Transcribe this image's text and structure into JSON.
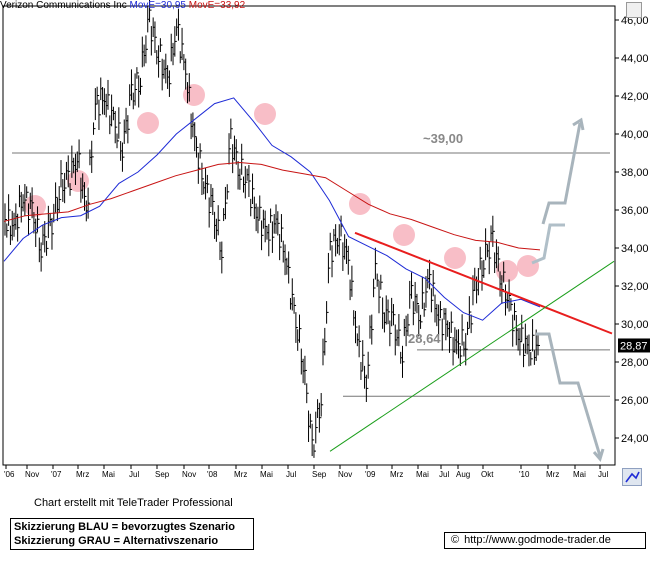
{
  "title": {
    "symbol": "Verizon Communications Inc",
    "ma_short_label": "MovE=30,95",
    "ma_long_label": "MovE=33,92"
  },
  "credit": "Chart erstellt mit TeleTrader Professional",
  "legend": {
    "blue_line": "Skizzierung BLAU = bevorzugtes Szenario",
    "gray_line": "Skizzierung GRAU = Alternativszenario"
  },
  "url": {
    "copyright_symbol": "©",
    "text": "http://www.godmode-trader.de"
  },
  "chart_data": {
    "type": "ohlc",
    "y_range": [
      23.0,
      46.5
    ],
    "y_ticks": [
      "46,00",
      "44,00",
      "42,00",
      "40,00",
      "38,00",
      "36,00",
      "34,00",
      "32,00",
      "30,00",
      "28,00",
      "26,00",
      "24,00"
    ],
    "last_price_label": "28,87",
    "last_price": 28.87,
    "x_tick_labels": [
      "'06",
      "Nov",
      "'07",
      "Mrz",
      "Mai",
      "Jul",
      "Sep",
      "Nov",
      "'08",
      "Mrz",
      "Mai",
      "Jul",
      "Sep",
      "Nov",
      "'09",
      "Mrz",
      "Mai",
      "Jul",
      "Aug",
      "Okt",
      "'10",
      "Mrz",
      "Mai",
      "Jul"
    ],
    "annotations": {
      "resistance_label": "~39,00",
      "resistance_value": 39.0,
      "support_label": "28,64",
      "support_value": 28.64,
      "lower_support_value": 26.2
    },
    "series": [
      {
        "name": "MovE=30,95",
        "color": "#1e2bd6",
        "values": [
          33.3,
          34.5,
          35.2,
          35.6,
          35.7,
          36.2,
          37.4,
          38.0,
          38.9,
          40.0,
          40.8,
          41.6,
          41.9,
          40.7,
          39.4,
          38.8,
          38.0,
          36.5,
          34.6,
          34.1,
          33.6,
          32.9,
          32.4,
          31.4,
          30.6,
          30.2,
          31.1,
          31.3,
          30.9
        ]
      },
      {
        "name": "MovE=33,92",
        "color": "#c81414",
        "values": [
          35.4,
          35.7,
          35.8,
          35.9,
          36.3,
          36.6,
          37.0,
          37.4,
          37.8,
          38.1,
          38.4,
          38.5,
          38.4,
          38.1,
          37.9,
          37.7,
          37.0,
          36.3,
          35.8,
          35.5,
          35.1,
          34.7,
          34.4,
          34.3,
          34.0,
          33.9
        ]
      }
    ],
    "price_points": [
      35.5,
      35.0,
      36.8,
      35.8,
      34.2,
      34.8,
      37.2,
      37.5,
      38.9,
      35.8,
      41.5,
      42.0,
      40.6,
      39.4,
      41.9,
      43.2,
      45.9,
      44.3,
      42.7,
      45.7,
      43.3,
      39.5,
      37.7,
      35.8,
      34.2,
      39.6,
      38.2,
      37.1,
      35.7,
      34.8,
      35.3,
      33.8,
      30.4,
      28.2,
      23.2,
      26.4,
      33.8,
      34.8,
      33.2,
      29.1,
      26.9,
      32.7,
      30.7,
      29.8,
      28.7,
      31.4,
      30.6,
      32.3,
      30.3,
      29.9,
      28.7,
      29.2,
      31.7,
      33.6,
      34.2,
      32.4,
      30.6,
      29.3,
      28.6,
      28.87
    ],
    "grid": false,
    "horizontal_lines": [
      39.0,
      28.64,
      26.2
    ],
    "trendlines": [
      "red downtrend resistance",
      "green uptrend support"
    ],
    "scenario_arrows": [
      "blue",
      "gray-up",
      "gray-down"
    ]
  }
}
